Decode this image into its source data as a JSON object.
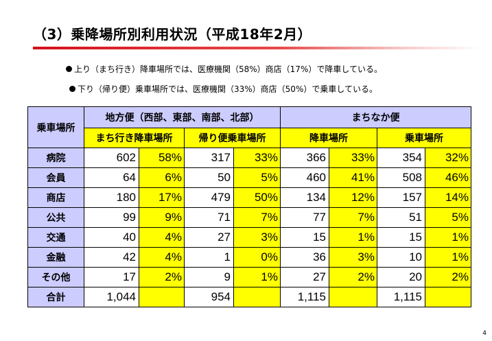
{
  "title": "（3）乗降場所別利用状況（平成18年2月）",
  "bullets": [
    "上り（まち行き）降車場所では、医療機関（58%）商店（17%）で降車している。",
    "下り（帰り便）乗車場所では、医療機関（33%）商店（50%）で乗車している。"
  ],
  "table": {
    "corner_header": "乗車場所",
    "group_headers": [
      "地方便（西部、東部、南部、北部）",
      "まちなか便"
    ],
    "sub_headers": [
      "まち行き降車場所",
      "帰り便乗車場所",
      "降車場所",
      "乗車場所"
    ],
    "rows": [
      {
        "label": "病院",
        "cells": [
          "602",
          "58%",
          "317",
          "33%",
          "366",
          "33%",
          "354",
          "32%"
        ]
      },
      {
        "label": "会員",
        "cells": [
          "64",
          "6%",
          "50",
          "5%",
          "460",
          "41%",
          "508",
          "46%"
        ]
      },
      {
        "label": "商店",
        "cells": [
          "180",
          "17%",
          "479",
          "50%",
          "134",
          "12%",
          "157",
          "14%"
        ]
      },
      {
        "label": "公共",
        "cells": [
          "99",
          "9%",
          "71",
          "7%",
          "77",
          "7%",
          "51",
          "5%"
        ]
      },
      {
        "label": "交通",
        "cells": [
          "40",
          "4%",
          "27",
          "3%",
          "15",
          "1%",
          "15",
          "1%"
        ]
      },
      {
        "label": "金融",
        "cells": [
          "42",
          "4%",
          "1",
          "0%",
          "36",
          "3%",
          "10",
          "1%"
        ]
      },
      {
        "label": "その他",
        "cells": [
          "17",
          "2%",
          "9",
          "1%",
          "27",
          "2%",
          "20",
          "2%"
        ]
      },
      {
        "label": "合計",
        "cells": [
          "1,044",
          "",
          "954",
          "",
          "1,115",
          "",
          "1,115",
          ""
        ]
      }
    ]
  },
  "colors": {
    "title_rule": "#d4101a",
    "header_lavender": "#ccccff",
    "cell_yellow": "#ffff00",
    "cell_white": "#ffffff"
  },
  "page_number": "4"
}
